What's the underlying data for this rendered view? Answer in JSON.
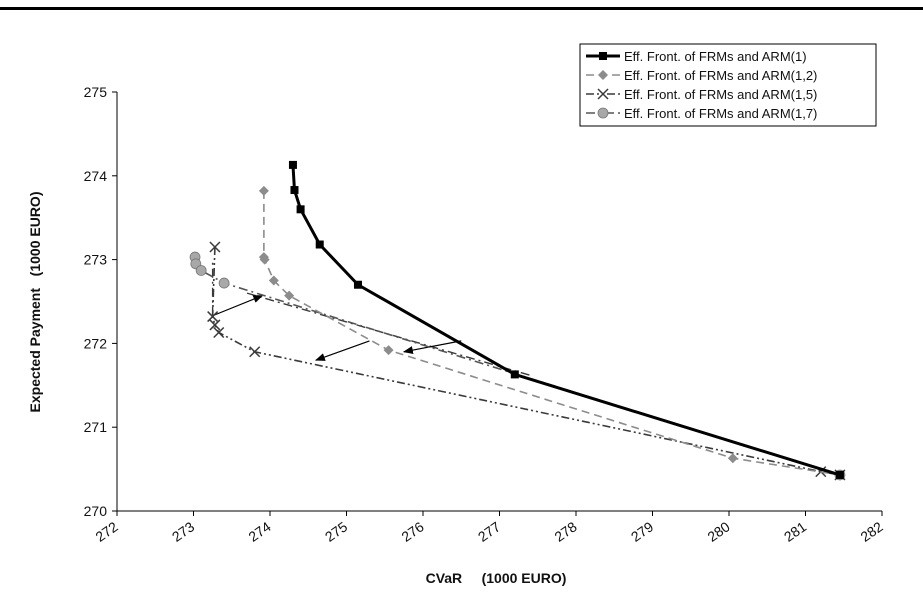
{
  "chart_data": {
    "type": "line",
    "xlabel": "CVaR     (1000 EURO)",
    "ylabel": "Expected Payment   (1000 EURO)",
    "xlim": [
      272,
      282
    ],
    "ylim": [
      270,
      275
    ],
    "x_ticks": [
      "272",
      "273",
      "274",
      "275",
      "276",
      "277",
      "278",
      "279",
      "280",
      "281",
      "282"
    ],
    "y_ticks": [
      "270",
      "271",
      "272",
      "273",
      "274",
      "275"
    ],
    "grid": false,
    "legend_position": "top-right",
    "series": [
      {
        "name": "Eff. Front. of FRMs and ARM(1)",
        "color": "#000000",
        "line": "solid",
        "marker": "square",
        "points": [
          [
            274.3,
            274.13
          ],
          [
            274.32,
            273.83
          ],
          [
            274.4,
            273.6
          ],
          [
            274.65,
            273.18
          ],
          [
            275.15,
            272.7
          ],
          [
            277.2,
            271.63
          ],
          [
            281.45,
            270.43
          ]
        ]
      },
      {
        "name": "Eff. Front. of FRMs and ARM(1,2)",
        "color": "#8c8c8c",
        "line": "dashed",
        "marker": "diamond",
        "points": [
          [
            273.92,
            273.82
          ],
          [
            273.92,
            273.03
          ],
          [
            273.93,
            273.0
          ],
          [
            274.05,
            272.75
          ],
          [
            274.25,
            272.57
          ],
          [
            275.55,
            271.92
          ],
          [
            280.05,
            270.63
          ],
          [
            281.45,
            270.43
          ]
        ]
      },
      {
        "name": "Eff. Front. of FRMs and ARM(1,5)",
        "color": "#3a3a3a",
        "line": "dashdotdot",
        "marker": "x",
        "points": [
          [
            273.28,
            273.15
          ],
          [
            273.25,
            272.32
          ],
          [
            273.28,
            272.22
          ],
          [
            273.33,
            272.13
          ],
          [
            273.8,
            271.9
          ],
          [
            281.2,
            270.47
          ],
          [
            281.45,
            270.43
          ]
        ]
      },
      {
        "name": "Eff. Front. of FRMs and ARM(1,7)",
        "color": "#555555",
        "line": "dashdot",
        "marker": "circle",
        "marker_fill": "#a8a8a8",
        "points": [
          [
            273.02,
            273.03
          ],
          [
            273.03,
            272.95
          ],
          [
            273.1,
            272.87
          ],
          [
            273.4,
            272.72
          ],
          [
            281.45,
            270.43
          ]
        ]
      }
    ],
    "annotations": {
      "arrows": [
        {
          "from": [
            276.5,
            272.03
          ],
          "to": [
            275.75,
            271.9
          ]
        },
        {
          "from": [
            275.3,
            272.03
          ],
          "to": [
            274.6,
            271.8
          ]
        },
        {
          "from": [
            273.25,
            272.33
          ],
          "to": [
            273.9,
            272.57
          ]
        }
      ],
      "connectors": [
        {
          "from": [
            273.25,
            272.33
          ],
          "to": [
            273.25,
            273.0
          ]
        },
        {
          "from": [
            273.7,
            272.6
          ],
          "to": [
            277.4,
            271.62
          ]
        }
      ]
    }
  }
}
